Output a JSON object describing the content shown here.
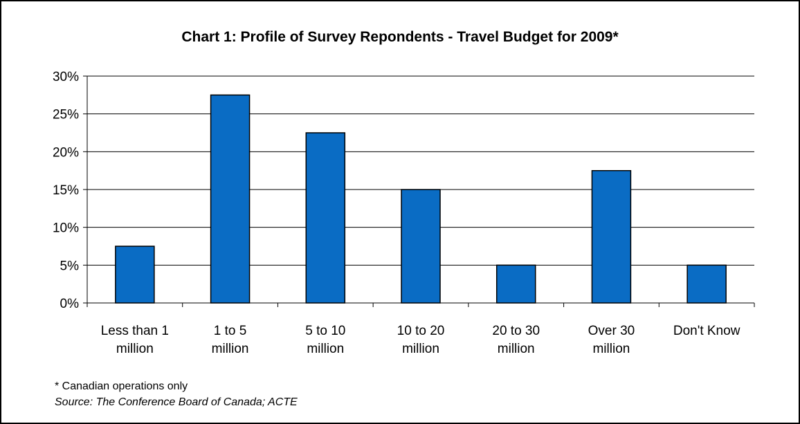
{
  "chart_data": {
    "type": "bar",
    "title": "Chart 1: Profile of Survey Repondents - Travel Budget for 2009*",
    "categories": [
      [
        "Less than 1",
        "million"
      ],
      [
        "1 to 5",
        "million"
      ],
      [
        "5 to 10",
        "million"
      ],
      [
        "10 to 20",
        "million"
      ],
      [
        "20 to 30",
        "million"
      ],
      [
        "Over 30",
        "million"
      ],
      [
        "Don't Know"
      ]
    ],
    "values": [
      7.5,
      27.5,
      22.5,
      15,
      5,
      17.5,
      5
    ],
    "y_ticks": [
      "0%",
      "5%",
      "10%",
      "15%",
      "20%",
      "25%",
      "30%"
    ],
    "ylim": [
      0,
      30
    ],
    "grid": true,
    "legend": "none",
    "bar_color": "#0a6cc4"
  },
  "notes": {
    "footnote": "* Canadian operations only",
    "source": "Source:  The Conference Board of Canada; ACTE"
  }
}
